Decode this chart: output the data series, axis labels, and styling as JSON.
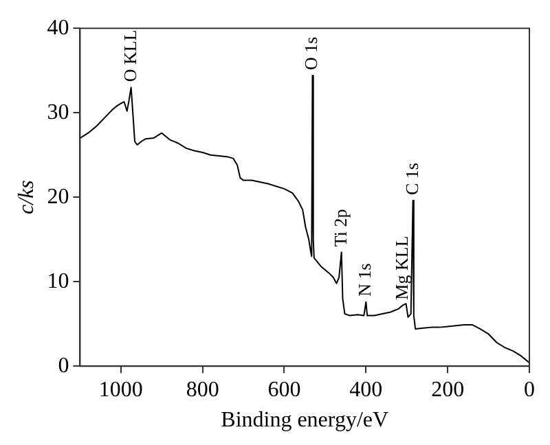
{
  "chart_data": {
    "type": "line",
    "xlabel": "Binding energy/eV",
    "ylabel": "c/ks",
    "xlim": [
      1100,
      0
    ],
    "xticks": [
      1000,
      800,
      600,
      400,
      200,
      0
    ],
    "ylim": [
      0,
      40
    ],
    "yticks": [
      0,
      10,
      20,
      30,
      40
    ],
    "grid": false,
    "legend": false,
    "marker": "none",
    "line_style": "solid",
    "x": [
      1100,
      1090,
      1080,
      1070,
      1060,
      1050,
      1040,
      1030,
      1020,
      1010,
      1000,
      992,
      985,
      980,
      975,
      970,
      966,
      960,
      950,
      940,
      920,
      900,
      880,
      860,
      840,
      820,
      800,
      780,
      760,
      740,
      725,
      715,
      708,
      700,
      680,
      660,
      640,
      620,
      600,
      580,
      565,
      555,
      548,
      540,
      535,
      533,
      531,
      529,
      527,
      520,
      510,
      500,
      490,
      480,
      472,
      466,
      460,
      457,
      452,
      440,
      420,
      405,
      400,
      397,
      380,
      360,
      340,
      320,
      310,
      302,
      297,
      290,
      285,
      283,
      279,
      260,
      240,
      220,
      200,
      180,
      160,
      140,
      120,
      100,
      80,
      60,
      40,
      20,
      10,
      0
    ],
    "series": [
      {
        "color": "#000000",
        "values": [
          27.0,
          27.3,
          27.6,
          28.0,
          28.4,
          28.9,
          29.4,
          29.9,
          30.4,
          30.8,
          31.1,
          31.3,
          30.2,
          31.5,
          33.0,
          29.5,
          26.6,
          26.2,
          26.6,
          26.9,
          27.0,
          27.6,
          26.8,
          26.4,
          25.8,
          25.5,
          25.3,
          25.0,
          24.9,
          24.8,
          24.6,
          23.8,
          22.3,
          22.0,
          22.0,
          21.8,
          21.6,
          21.3,
          21.0,
          20.5,
          19.5,
          18.5,
          16.5,
          15.0,
          13.5,
          13.0,
          34.4,
          15.0,
          12.8,
          12.4,
          11.8,
          11.4,
          11.0,
          10.5,
          9.8,
          10.5,
          13.5,
          8.0,
          6.2,
          6.0,
          6.1,
          6.0,
          7.6,
          6.0,
          6.0,
          6.2,
          6.4,
          6.8,
          7.2,
          7.4,
          5.8,
          6.2,
          19.6,
          6.0,
          4.4,
          4.5,
          4.6,
          4.6,
          4.7,
          4.8,
          4.9,
          4.9,
          4.4,
          3.8,
          2.8,
          2.2,
          1.8,
          1.2,
          0.8,
          0.4
        ]
      }
    ],
    "annotations": [
      {
        "text": "O KLL",
        "x": 975,
        "y": 33.0
      },
      {
        "text": "O 1s",
        "x": 531,
        "y": 34.4
      },
      {
        "text": "Ti 2p",
        "x": 460,
        "y": 13.5
      },
      {
        "text": "N 1s",
        "x": 400,
        "y": 7.6
      },
      {
        "text": "Mg KLL",
        "x": 310,
        "y": 7.2
      },
      {
        "text": "C 1s",
        "x": 285,
        "y": 19.6
      }
    ]
  }
}
